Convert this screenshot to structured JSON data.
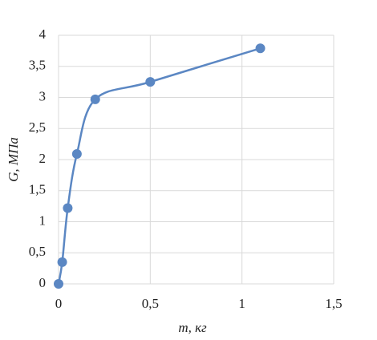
{
  "chart_data": {
    "type": "scatter",
    "x_label": "m, кг",
    "y_label": "G, МПа",
    "xlim": [
      0,
      1.5
    ],
    "ylim": [
      0,
      4
    ],
    "xticks": [
      0,
      {
        "value": 0.5,
        "label": "0,5"
      },
      1,
      {
        "value": 1.5,
        "label": "1,5"
      }
    ],
    "yticks": [
      0,
      {
        "value": 0.5,
        "label": "0,5"
      },
      1,
      {
        "value": 1.5,
        "label": "1,5"
      },
      2,
      {
        "value": 2.5,
        "label": "2,5"
      },
      3,
      {
        "value": 3.5,
        "label": "3,5"
      },
      4
    ],
    "grid": true,
    "smooth": true,
    "series": [
      {
        "color": "#5b87c3",
        "x": [
          0,
          0.02,
          0.05,
          0.1,
          0.2,
          0.5,
          1.1
        ],
        "values": [
          0,
          0.35,
          1.22,
          2.09,
          2.97,
          3.25,
          3.79
        ]
      }
    ]
  }
}
